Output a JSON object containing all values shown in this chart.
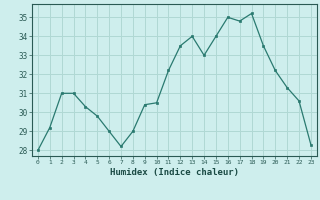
{
  "x": [
    0,
    1,
    2,
    3,
    4,
    5,
    6,
    7,
    8,
    9,
    10,
    11,
    12,
    13,
    14,
    15,
    16,
    17,
    18,
    19,
    20,
    21,
    22,
    23
  ],
  "y": [
    28.0,
    29.2,
    31.0,
    31.0,
    30.3,
    29.8,
    29.0,
    28.2,
    29.0,
    30.4,
    30.5,
    32.2,
    33.5,
    34.0,
    33.0,
    34.0,
    35.0,
    34.8,
    35.2,
    33.5,
    32.2,
    31.3,
    30.6,
    28.3
  ],
  "xlabel": "Humidex (Indice chaleur)",
  "ylim": [
    27.7,
    35.7
  ],
  "xlim": [
    -0.5,
    23.5
  ],
  "yticks": [
    28,
    29,
    30,
    31,
    32,
    33,
    34,
    35
  ],
  "xticks": [
    0,
    1,
    2,
    3,
    4,
    5,
    6,
    7,
    8,
    9,
    10,
    11,
    12,
    13,
    14,
    15,
    16,
    17,
    18,
    19,
    20,
    21,
    22,
    23
  ],
  "line_color": "#2a7a70",
  "marker_color": "#2a7a70",
  "bg_color": "#ceeeed",
  "grid_color": "#b0d8d4",
  "axis_color": "#2a5a54",
  "tick_label_color": "#2a5a54",
  "xlabel_color": "#1a4a44"
}
